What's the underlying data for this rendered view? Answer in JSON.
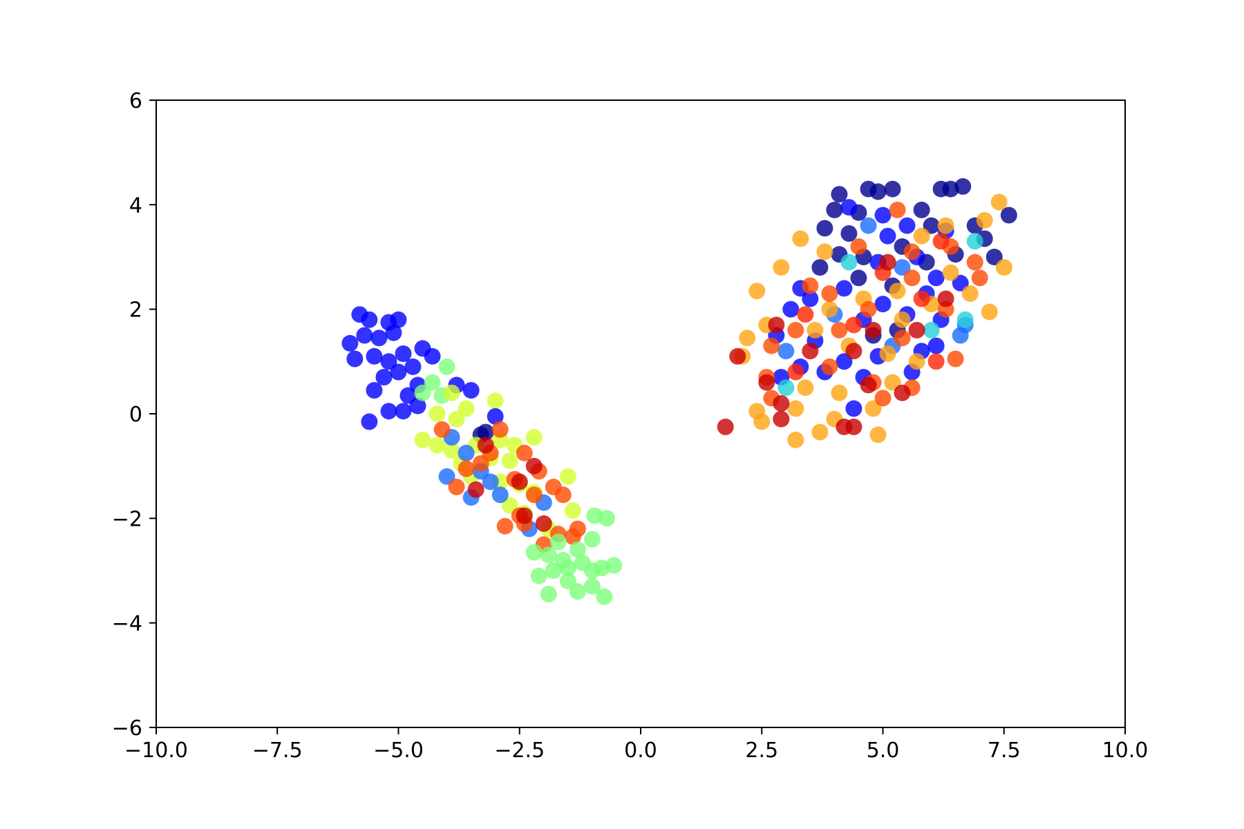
{
  "chart_data": {
    "type": "scatter",
    "title": "",
    "xlabel": "",
    "ylabel": "",
    "xlim": [
      -10,
      10
    ],
    "ylim": [
      -6,
      6
    ],
    "xticks": [
      -10,
      -7.5,
      -5,
      -2.5,
      0,
      2.5,
      5,
      7.5,
      10
    ],
    "xtick_labels": [
      "−10.0",
      "−7.5",
      "−5.0",
      "−2.5",
      "0.0",
      "2.5",
      "5.0",
      "7.5",
      "10.0"
    ],
    "yticks": [
      -6,
      -4,
      -2,
      0,
      2,
      4,
      6
    ],
    "ytick_labels": [
      "−6",
      "−4",
      "−2",
      "0",
      "2",
      "4",
      "6"
    ],
    "grid": false,
    "legend": "none",
    "marker_opacity": 0.8,
    "point_colors": [
      "#00008f",
      "#0000ff",
      "#1a6bff",
      "#26d0d8",
      "#7dff7a",
      "#d2ff2d",
      "#ffa412",
      "#ff4a00",
      "#ff2400",
      "#c80000"
    ],
    "points": [
      {
        "x": -5.8,
        "y": 1.9,
        "c": 1
      },
      {
        "x": -5.6,
        "y": 1.8,
        "c": 1
      },
      {
        "x": -5.0,
        "y": 1.8,
        "c": 1
      },
      {
        "x": -5.2,
        "y": 1.75,
        "c": 1
      },
      {
        "x": -6.0,
        "y": 1.35,
        "c": 1
      },
      {
        "x": -5.7,
        "y": 1.5,
        "c": 1
      },
      {
        "x": -5.4,
        "y": 1.45,
        "c": 1
      },
      {
        "x": -5.1,
        "y": 1.55,
        "c": 1
      },
      {
        "x": -5.9,
        "y": 1.05,
        "c": 1
      },
      {
        "x": -5.5,
        "y": 1.1,
        "c": 1
      },
      {
        "x": -5.2,
        "y": 1.0,
        "c": 1
      },
      {
        "x": -4.9,
        "y": 1.15,
        "c": 1
      },
      {
        "x": -4.5,
        "y": 1.25,
        "c": 1
      },
      {
        "x": -4.3,
        "y": 1.1,
        "c": 1
      },
      {
        "x": -5.0,
        "y": 0.8,
        "c": 1
      },
      {
        "x": -4.7,
        "y": 0.9,
        "c": 1
      },
      {
        "x": -5.3,
        "y": 0.7,
        "c": 1
      },
      {
        "x": -4.6,
        "y": 0.55,
        "c": 1
      },
      {
        "x": -5.5,
        "y": 0.45,
        "c": 1
      },
      {
        "x": -4.8,
        "y": 0.35,
        "c": 1
      },
      {
        "x": -5.2,
        "y": 0.05,
        "c": 1
      },
      {
        "x": -4.9,
        "y": 0.05,
        "c": 1
      },
      {
        "x": -5.6,
        "y": -0.15,
        "c": 1
      },
      {
        "x": -4.6,
        "y": 0.15,
        "c": 1
      },
      {
        "x": -3.8,
        "y": 0.55,
        "c": 1
      },
      {
        "x": -3.5,
        "y": 0.45,
        "c": 1
      },
      {
        "x": -3.3,
        "y": -0.4,
        "c": 0
      },
      {
        "x": -3.2,
        "y": -0.35,
        "c": 0
      },
      {
        "x": -4.3,
        "y": 0.6,
        "c": 4
      },
      {
        "x": -4.0,
        "y": 0.9,
        "c": 4
      },
      {
        "x": -4.5,
        "y": 0.4,
        "c": 4
      },
      {
        "x": -4.1,
        "y": 0.35,
        "c": 4
      },
      {
        "x": -3.9,
        "y": 0.4,
        "c": 5
      },
      {
        "x": -4.2,
        "y": 0.0,
        "c": 5
      },
      {
        "x": -3.6,
        "y": 0.1,
        "c": 5
      },
      {
        "x": -3.0,
        "y": 0.25,
        "c": 5
      },
      {
        "x": -3.8,
        "y": -0.1,
        "c": 5
      },
      {
        "x": -4.5,
        "y": -0.5,
        "c": 5
      },
      {
        "x": -4.2,
        "y": -0.6,
        "c": 5
      },
      {
        "x": -3.9,
        "y": -0.7,
        "c": 5
      },
      {
        "x": -3.4,
        "y": -0.6,
        "c": 5
      },
      {
        "x": -2.9,
        "y": -0.5,
        "c": 5
      },
      {
        "x": -2.6,
        "y": -0.6,
        "c": 5
      },
      {
        "x": -2.2,
        "y": -0.45,
        "c": 5
      },
      {
        "x": -3.7,
        "y": -0.95,
        "c": 5
      },
      {
        "x": -3.1,
        "y": -0.85,
        "c": 5
      },
      {
        "x": -2.7,
        "y": -0.9,
        "c": 5
      },
      {
        "x": -3.5,
        "y": -1.2,
        "c": 5
      },
      {
        "x": -2.9,
        "y": -1.3,
        "c": 5
      },
      {
        "x": -2.5,
        "y": -1.35,
        "c": 5
      },
      {
        "x": -2.2,
        "y": -1.5,
        "c": 5
      },
      {
        "x": -1.5,
        "y": -1.2,
        "c": 5
      },
      {
        "x": -2.7,
        "y": -1.75,
        "c": 5
      },
      {
        "x": -2.4,
        "y": -1.9,
        "c": 5
      },
      {
        "x": -1.4,
        "y": -1.85,
        "c": 5
      },
      {
        "x": -1.9,
        "y": -2.2,
        "c": 5
      },
      {
        "x": -3.9,
        "y": -0.45,
        "c": 2
      },
      {
        "x": -3.6,
        "y": -0.75,
        "c": 2
      },
      {
        "x": -4.0,
        "y": -1.2,
        "c": 2
      },
      {
        "x": -3.3,
        "y": -1.1,
        "c": 2
      },
      {
        "x": -3.1,
        "y": -1.3,
        "c": 2
      },
      {
        "x": -3.5,
        "y": -1.6,
        "c": 2
      },
      {
        "x": -2.9,
        "y": -1.55,
        "c": 2
      },
      {
        "x": -2.0,
        "y": -1.7,
        "c": 2
      },
      {
        "x": -3.0,
        "y": -0.05,
        "c": 1
      },
      {
        "x": -2.3,
        "y": -2.2,
        "c": 2
      },
      {
        "x": -4.1,
        "y": -0.3,
        "c": 7
      },
      {
        "x": -3.8,
        "y": -1.4,
        "c": 7
      },
      {
        "x": -3.3,
        "y": -0.95,
        "c": 7
      },
      {
        "x": -2.9,
        "y": -0.3,
        "c": 7
      },
      {
        "x": -2.4,
        "y": -0.75,
        "c": 7
      },
      {
        "x": -2.1,
        "y": -1.1,
        "c": 7
      },
      {
        "x": -1.8,
        "y": -1.4,
        "c": 7
      },
      {
        "x": -1.6,
        "y": -1.55,
        "c": 7
      },
      {
        "x": -2.6,
        "y": -1.25,
        "c": 7
      },
      {
        "x": -2.2,
        "y": -1.55,
        "c": 7
      },
      {
        "x": -2.8,
        "y": -2.15,
        "c": 7
      },
      {
        "x": -2.4,
        "y": -2.1,
        "c": 7
      },
      {
        "x": -1.7,
        "y": -2.3,
        "c": 7
      },
      {
        "x": -1.3,
        "y": -2.2,
        "c": 7
      },
      {
        "x": -2.0,
        "y": -2.5,
        "c": 7
      },
      {
        "x": -1.4,
        "y": -2.35,
        "c": 7
      },
      {
        "x": -3.1,
        "y": -0.75,
        "c": 7
      },
      {
        "x": -3.6,
        "y": -1.05,
        "c": 7
      },
      {
        "x": -2.5,
        "y": -1.95,
        "c": 7
      },
      {
        "x": -3.4,
        "y": -1.45,
        "c": 9
      },
      {
        "x": -2.5,
        "y": -1.3,
        "c": 9
      },
      {
        "x": -2.2,
        "y": -1.0,
        "c": 9
      },
      {
        "x": -2.4,
        "y": -1.95,
        "c": 9
      },
      {
        "x": -2.0,
        "y": -2.1,
        "c": 9
      },
      {
        "x": -3.2,
        "y": -0.6,
        "c": 9
      },
      {
        "x": -1.9,
        "y": -2.7,
        "c": 4
      },
      {
        "x": -1.6,
        "y": -2.8,
        "c": 4
      },
      {
        "x": -1.3,
        "y": -2.6,
        "c": 4
      },
      {
        "x": -1.0,
        "y": -2.4,
        "c": 4
      },
      {
        "x": -0.95,
        "y": -1.95,
        "c": 4
      },
      {
        "x": -0.7,
        "y": -2.0,
        "c": 4
      },
      {
        "x": -1.2,
        "y": -2.85,
        "c": 4
      },
      {
        "x": -1.0,
        "y": -3.0,
        "c": 4
      },
      {
        "x": -0.8,
        "y": -2.95,
        "c": 4
      },
      {
        "x": -0.55,
        "y": -2.9,
        "c": 4
      },
      {
        "x": -1.5,
        "y": -3.2,
        "c": 4
      },
      {
        "x": -1.3,
        "y": -3.4,
        "c": 4
      },
      {
        "x": -1.0,
        "y": -3.3,
        "c": 4
      },
      {
        "x": -1.9,
        "y": -3.45,
        "c": 4
      },
      {
        "x": -0.75,
        "y": -3.5,
        "c": 4
      },
      {
        "x": -2.1,
        "y": -3.1,
        "c": 4
      },
      {
        "x": -1.7,
        "y": -2.45,
        "c": 4
      },
      {
        "x": -2.2,
        "y": -2.65,
        "c": 4
      },
      {
        "x": -1.8,
        "y": -3.0,
        "c": 4
      },
      {
        "x": -1.5,
        "y": -2.95,
        "c": 4
      },
      {
        "x": 4.1,
        "y": 4.2,
        "c": 0
      },
      {
        "x": 4.7,
        "y": 4.3,
        "c": 0
      },
      {
        "x": 4.9,
        "y": 4.25,
        "c": 0
      },
      {
        "x": 5.2,
        "y": 4.3,
        "c": 0
      },
      {
        "x": 6.2,
        "y": 4.3,
        "c": 0
      },
      {
        "x": 6.4,
        "y": 4.3,
        "c": 0
      },
      {
        "x": 6.65,
        "y": 4.35,
        "c": 0
      },
      {
        "x": 7.6,
        "y": 3.8,
        "c": 0
      },
      {
        "x": 4.0,
        "y": 3.9,
        "c": 0
      },
      {
        "x": 4.5,
        "y": 3.85,
        "c": 0
      },
      {
        "x": 3.8,
        "y": 3.55,
        "c": 0
      },
      {
        "x": 4.3,
        "y": 3.45,
        "c": 0
      },
      {
        "x": 5.8,
        "y": 3.9,
        "c": 0
      },
      {
        "x": 6.0,
        "y": 3.6,
        "c": 0
      },
      {
        "x": 6.9,
        "y": 3.6,
        "c": 0
      },
      {
        "x": 7.1,
        "y": 3.35,
        "c": 0
      },
      {
        "x": 4.1,
        "y": 3.05,
        "c": 0
      },
      {
        "x": 4.6,
        "y": 3.0,
        "c": 0
      },
      {
        "x": 5.4,
        "y": 3.2,
        "c": 0
      },
      {
        "x": 5.9,
        "y": 2.9,
        "c": 0
      },
      {
        "x": 6.5,
        "y": 3.05,
        "c": 0
      },
      {
        "x": 3.7,
        "y": 2.8,
        "c": 0
      },
      {
        "x": 4.5,
        "y": 2.6,
        "c": 0
      },
      {
        "x": 5.2,
        "y": 2.45,
        "c": 0
      },
      {
        "x": 7.3,
        "y": 3.0,
        "c": 0
      },
      {
        "x": 4.8,
        "y": 1.5,
        "c": 0
      },
      {
        "x": 5.3,
        "y": 1.6,
        "c": 0
      },
      {
        "x": 4.3,
        "y": 3.95,
        "c": 1
      },
      {
        "x": 5.0,
        "y": 3.8,
        "c": 1
      },
      {
        "x": 5.5,
        "y": 3.6,
        "c": 1
      },
      {
        "x": 6.3,
        "y": 3.5,
        "c": 1
      },
      {
        "x": 5.1,
        "y": 3.4,
        "c": 1
      },
      {
        "x": 4.9,
        "y": 2.9,
        "c": 1
      },
      {
        "x": 5.7,
        "y": 3.0,
        "c": 1
      },
      {
        "x": 6.1,
        "y": 2.6,
        "c": 1
      },
      {
        "x": 3.3,
        "y": 2.4,
        "c": 1
      },
      {
        "x": 3.5,
        "y": 2.2,
        "c": 1
      },
      {
        "x": 3.1,
        "y": 2.0,
        "c": 1
      },
      {
        "x": 4.2,
        "y": 2.4,
        "c": 1
      },
      {
        "x": 5.0,
        "y": 2.1,
        "c": 1
      },
      {
        "x": 5.9,
        "y": 2.3,
        "c": 1
      },
      {
        "x": 6.6,
        "y": 2.5,
        "c": 1
      },
      {
        "x": 2.8,
        "y": 1.5,
        "c": 1
      },
      {
        "x": 3.6,
        "y": 1.4,
        "c": 1
      },
      {
        "x": 4.6,
        "y": 1.8,
        "c": 1
      },
      {
        "x": 5.5,
        "y": 1.9,
        "c": 1
      },
      {
        "x": 6.2,
        "y": 1.8,
        "c": 1
      },
      {
        "x": 3.3,
        "y": 0.9,
        "c": 1
      },
      {
        "x": 4.2,
        "y": 1.0,
        "c": 1
      },
      {
        "x": 4.9,
        "y": 1.1,
        "c": 1
      },
      {
        "x": 5.8,
        "y": 1.2,
        "c": 1
      },
      {
        "x": 6.1,
        "y": 1.3,
        "c": 1
      },
      {
        "x": 3.8,
        "y": 0.8,
        "c": 1
      },
      {
        "x": 4.6,
        "y": 0.7,
        "c": 1
      },
      {
        "x": 2.9,
        "y": 0.7,
        "c": 1
      },
      {
        "x": 4.4,
        "y": 0.1,
        "c": 1
      },
      {
        "x": 5.6,
        "y": 0.8,
        "c": 1
      },
      {
        "x": 4.7,
        "y": 3.6,
        "c": 2
      },
      {
        "x": 5.4,
        "y": 2.8,
        "c": 2
      },
      {
        "x": 4.0,
        "y": 1.9,
        "c": 2
      },
      {
        "x": 6.6,
        "y": 1.5,
        "c": 2
      },
      {
        "x": 3.0,
        "y": 1.2,
        "c": 2
      },
      {
        "x": 5.2,
        "y": 1.3,
        "c": 2
      },
      {
        "x": 6.7,
        "y": 1.7,
        "c": 2
      },
      {
        "x": 6.7,
        "y": 1.8,
        "c": 3
      },
      {
        "x": 4.3,
        "y": 2.9,
        "c": 3
      },
      {
        "x": 3.0,
        "y": 0.5,
        "c": 3
      },
      {
        "x": 6.9,
        "y": 3.3,
        "c": 3
      },
      {
        "x": 6.0,
        "y": 1.6,
        "c": 3
      },
      {
        "x": 3.3,
        "y": 3.35,
        "c": 6
      },
      {
        "x": 2.9,
        "y": 2.8,
        "c": 6
      },
      {
        "x": 3.8,
        "y": 3.1,
        "c": 6
      },
      {
        "x": 7.4,
        "y": 4.05,
        "c": 6
      },
      {
        "x": 7.1,
        "y": 3.7,
        "c": 6
      },
      {
        "x": 6.3,
        "y": 3.6,
        "c": 6
      },
      {
        "x": 5.8,
        "y": 3.4,
        "c": 6
      },
      {
        "x": 7.5,
        "y": 2.8,
        "c": 6
      },
      {
        "x": 2.4,
        "y": 2.35,
        "c": 6
      },
      {
        "x": 2.6,
        "y": 1.7,
        "c": 6
      },
      {
        "x": 2.2,
        "y": 1.45,
        "c": 6
      },
      {
        "x": 2.1,
        "y": 1.1,
        "c": 6
      },
      {
        "x": 3.9,
        "y": 2.0,
        "c": 6
      },
      {
        "x": 4.6,
        "y": 2.2,
        "c": 6
      },
      {
        "x": 5.3,
        "y": 2.35,
        "c": 6
      },
      {
        "x": 6.0,
        "y": 2.1,
        "c": 6
      },
      {
        "x": 6.8,
        "y": 2.3,
        "c": 6
      },
      {
        "x": 7.2,
        "y": 1.95,
        "c": 6
      },
      {
        "x": 3.6,
        "y": 1.6,
        "c": 6
      },
      {
        "x": 4.3,
        "y": 1.3,
        "c": 6
      },
      {
        "x": 5.1,
        "y": 1.15,
        "c": 6
      },
      {
        "x": 5.7,
        "y": 1.0,
        "c": 6
      },
      {
        "x": 3.4,
        "y": 0.5,
        "c": 6
      },
      {
        "x": 4.1,
        "y": 0.4,
        "c": 6
      },
      {
        "x": 5.2,
        "y": 0.6,
        "c": 6
      },
      {
        "x": 2.4,
        "y": 0.05,
        "c": 6
      },
      {
        "x": 3.2,
        "y": 0.1,
        "c": 6
      },
      {
        "x": 4.0,
        "y": -0.1,
        "c": 6
      },
      {
        "x": 2.5,
        "y": -0.15,
        "c": 6
      },
      {
        "x": 3.2,
        "y": -0.5,
        "c": 6
      },
      {
        "x": 3.7,
        "y": -0.35,
        "c": 6
      },
      {
        "x": 4.9,
        "y": -0.4,
        "c": 6
      },
      {
        "x": 4.8,
        "y": 0.1,
        "c": 6
      },
      {
        "x": 5.4,
        "y": 1.8,
        "c": 6
      },
      {
        "x": 6.4,
        "y": 2.7,
        "c": 6
      },
      {
        "x": 5.6,
        "y": 3.1,
        "c": 7
      },
      {
        "x": 6.4,
        "y": 3.2,
        "c": 7
      },
      {
        "x": 6.9,
        "y": 2.9,
        "c": 7
      },
      {
        "x": 5.3,
        "y": 3.9,
        "c": 7
      },
      {
        "x": 4.5,
        "y": 3.2,
        "c": 7
      },
      {
        "x": 3.5,
        "y": 2.45,
        "c": 7
      },
      {
        "x": 3.9,
        "y": 2.3,
        "c": 7
      },
      {
        "x": 4.7,
        "y": 2.0,
        "c": 7
      },
      {
        "x": 5.6,
        "y": 2.6,
        "c": 7
      },
      {
        "x": 6.3,
        "y": 2.0,
        "c": 7
      },
      {
        "x": 7.0,
        "y": 2.6,
        "c": 7
      },
      {
        "x": 2.7,
        "y": 1.3,
        "c": 7
      },
      {
        "x": 3.2,
        "y": 1.6,
        "c": 7
      },
      {
        "x": 4.1,
        "y": 1.6,
        "c": 7
      },
      {
        "x": 5.4,
        "y": 1.45,
        "c": 7
      },
      {
        "x": 6.5,
        "y": 1.05,
        "c": 7
      },
      {
        "x": 2.6,
        "y": 0.7,
        "c": 7
      },
      {
        "x": 3.9,
        "y": 0.9,
        "c": 7
      },
      {
        "x": 4.8,
        "y": 0.6,
        "c": 7
      },
      {
        "x": 5.6,
        "y": 0.5,
        "c": 7
      },
      {
        "x": 2.7,
        "y": 0.3,
        "c": 7
      },
      {
        "x": 5.0,
        "y": 0.3,
        "c": 7
      },
      {
        "x": 5.8,
        "y": 2.2,
        "c": 8
      },
      {
        "x": 4.4,
        "y": 1.7,
        "c": 8
      },
      {
        "x": 6.2,
        "y": 3.3,
        "c": 8
      },
      {
        "x": 3.4,
        "y": 1.9,
        "c": 8
      },
      {
        "x": 5.0,
        "y": 2.7,
        "c": 8
      },
      {
        "x": 6.1,
        "y": 1.0,
        "c": 8
      },
      {
        "x": 3.2,
        "y": 0.8,
        "c": 8
      },
      {
        "x": 1.75,
        "y": -0.25,
        "c": 9
      },
      {
        "x": 2.0,
        "y": 1.1,
        "c": 9
      },
      {
        "x": 2.6,
        "y": 0.6,
        "c": 9
      },
      {
        "x": 2.9,
        "y": 0.2,
        "c": 9
      },
      {
        "x": 2.9,
        "y": -0.1,
        "c": 9
      },
      {
        "x": 4.2,
        "y": -0.25,
        "c": 9
      },
      {
        "x": 4.4,
        "y": -0.25,
        "c": 9
      },
      {
        "x": 4.7,
        "y": 0.55,
        "c": 9
      },
      {
        "x": 5.4,
        "y": 0.4,
        "c": 9
      },
      {
        "x": 4.8,
        "y": 1.6,
        "c": 9
      },
      {
        "x": 5.7,
        "y": 1.6,
        "c": 9
      },
      {
        "x": 3.5,
        "y": 1.2,
        "c": 9
      },
      {
        "x": 4.4,
        "y": 1.2,
        "c": 9
      },
      {
        "x": 5.1,
        "y": 2.9,
        "c": 9
      },
      {
        "x": 2.8,
        "y": 1.7,
        "c": 9
      },
      {
        "x": 6.3,
        "y": 2.2,
        "c": 9
      }
    ]
  }
}
